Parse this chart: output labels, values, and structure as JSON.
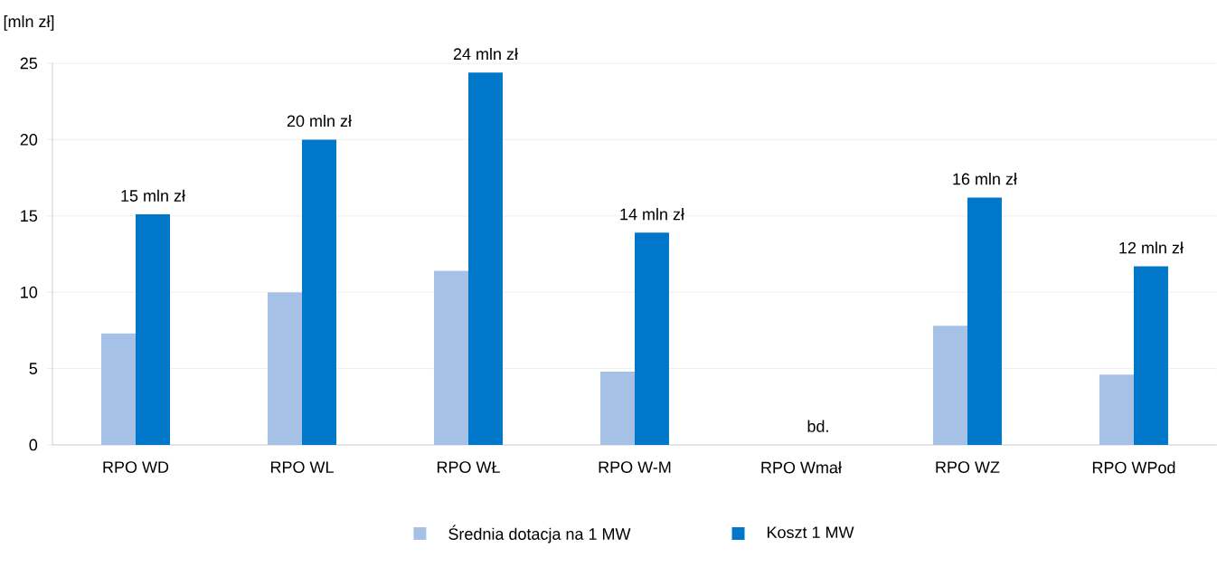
{
  "chart_data": {
    "type": "bar",
    "ylabel": "[mln zł]",
    "categories": [
      "RPO WD",
      "RPO WL",
      "RPO WŁ",
      "RPO W-M",
      "RPO Wmał",
      "RPO WZ",
      "RPO WPod"
    ],
    "series": [
      {
        "name": "Średnia dotacja na 1 MW",
        "color": "#a5c2e6",
        "values": [
          7.3,
          10.0,
          11.4,
          4.8,
          null,
          7.8,
          4.6
        ]
      },
      {
        "name": "Koszt 1 MW",
        "color": "#0077c8",
        "values": [
          15.1,
          20.0,
          24.4,
          13.9,
          null,
          16.2,
          11.7
        ],
        "value_labels": [
          "15 mln zł",
          "20 mln zł",
          "24 mln zł",
          "14 mln zł",
          "bd.",
          "16 mln zł",
          "12 mln zł"
        ]
      }
    ],
    "ylim": [
      0,
      25
    ],
    "yticks": [
      0,
      5,
      10,
      15,
      20,
      25
    ],
    "grid": "y",
    "legend": "bottom"
  }
}
